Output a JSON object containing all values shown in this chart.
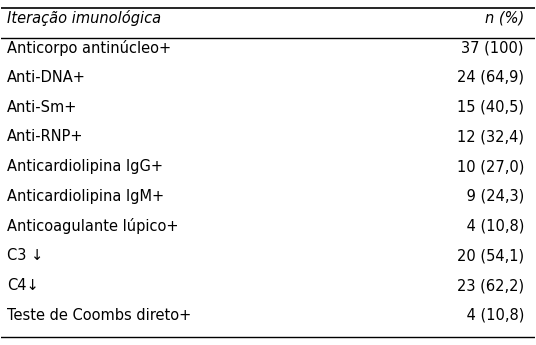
{
  "header_left": "Iteração imunológica",
  "header_right": "n (%)",
  "rows": [
    [
      "Anticorpo antinúcleo+",
      "37 (100)"
    ],
    [
      "Anti-DNA+",
      "24 (64,9)"
    ],
    [
      "Anti-Sm+",
      "15 (40,5)"
    ],
    [
      "Anti-RNP+",
      "12 (32,4)"
    ],
    [
      "Anticardiolipina IgG+",
      "10 (27,0)"
    ],
    [
      "Anticardiolipina IgM+",
      " 9 (24,3)"
    ],
    [
      "Anticoagulante lúpico+",
      " 4 (10,8)"
    ],
    [
      "C3 ↓",
      "20 (54,1)"
    ],
    [
      "C4↓",
      "23 (62,2)"
    ],
    [
      "Teste de Coombs direto+",
      " 4 (10,8)"
    ]
  ],
  "bg_color": "#ffffff",
  "text_color": "#000000",
  "font_size": 10.5,
  "header_font_size": 10.5
}
